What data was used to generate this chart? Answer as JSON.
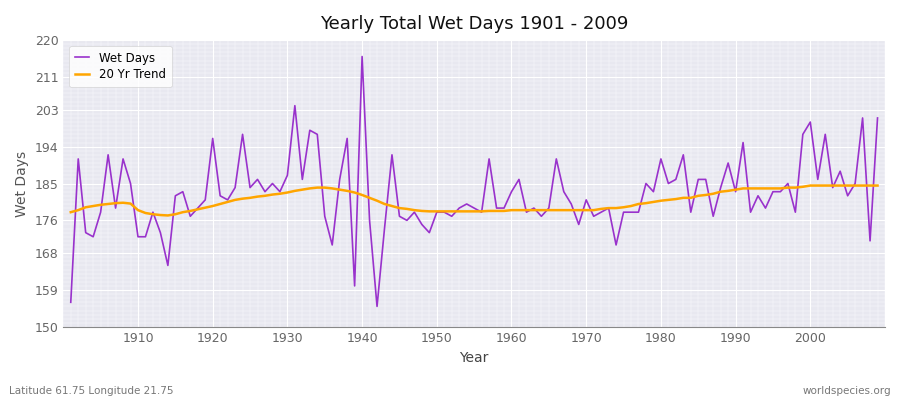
{
  "title": "Yearly Total Wet Days 1901 - 2009",
  "xlabel": "Year",
  "ylabel": "Wet Days",
  "footnote_left": "Latitude 61.75 Longitude 21.75",
  "footnote_right": "worldspecies.org",
  "ylim": [
    150,
    220
  ],
  "yticks": [
    150,
    159,
    168,
    176,
    185,
    194,
    203,
    211,
    220
  ],
  "line_color": "#9932CC",
  "trend_color": "#FFA500",
  "fig_bg": "#FFFFFF",
  "plot_bg": "#E8E8F0",
  "years": [
    1901,
    1902,
    1903,
    1904,
    1905,
    1906,
    1907,
    1908,
    1909,
    1910,
    1911,
    1912,
    1913,
    1914,
    1915,
    1916,
    1917,
    1918,
    1919,
    1920,
    1921,
    1922,
    1923,
    1924,
    1925,
    1926,
    1927,
    1928,
    1929,
    1930,
    1931,
    1932,
    1933,
    1934,
    1935,
    1936,
    1937,
    1938,
    1939,
    1940,
    1941,
    1942,
    1943,
    1944,
    1945,
    1946,
    1947,
    1948,
    1949,
    1950,
    1951,
    1952,
    1953,
    1954,
    1955,
    1956,
    1957,
    1958,
    1959,
    1960,
    1961,
    1962,
    1963,
    1964,
    1965,
    1966,
    1967,
    1968,
    1969,
    1970,
    1971,
    1972,
    1973,
    1974,
    1975,
    1976,
    1977,
    1978,
    1979,
    1980,
    1981,
    1982,
    1983,
    1984,
    1985,
    1986,
    1987,
    1988,
    1989,
    1990,
    1991,
    1992,
    1993,
    1994,
    1995,
    1996,
    1997,
    1998,
    1999,
    2000,
    2001,
    2002,
    2003,
    2004,
    2005,
    2006,
    2007,
    2008,
    2009
  ],
  "wet_days": [
    156,
    191,
    173,
    172,
    178,
    192,
    179,
    191,
    185,
    172,
    172,
    178,
    173,
    165,
    182,
    183,
    177,
    179,
    181,
    196,
    182,
    181,
    184,
    197,
    184,
    186,
    183,
    185,
    183,
    187,
    204,
    186,
    198,
    197,
    177,
    170,
    186,
    196,
    160,
    216,
    176,
    155,
    174,
    192,
    177,
    176,
    178,
    175,
    173,
    178,
    178,
    177,
    179,
    180,
    179,
    178,
    191,
    179,
    179,
    183,
    186,
    178,
    179,
    177,
    179,
    191,
    183,
    180,
    175,
    181,
    177,
    178,
    179,
    170,
    178,
    178,
    178,
    185,
    183,
    191,
    185,
    186,
    192,
    178,
    186,
    186,
    177,
    184,
    190,
    183,
    195,
    178,
    182,
    179,
    183,
    183,
    185,
    178,
    197,
    200,
    186,
    197,
    184,
    188,
    182,
    185,
    201,
    171,
    201
  ],
  "trend": [
    178.0,
    178.5,
    179.2,
    179.5,
    179.8,
    180.0,
    180.2,
    180.3,
    180.1,
    178.5,
    177.8,
    177.5,
    177.3,
    177.2,
    177.5,
    178.0,
    178.3,
    178.7,
    179.1,
    179.5,
    180.0,
    180.5,
    181.0,
    181.3,
    181.5,
    181.8,
    182.0,
    182.3,
    182.5,
    182.8,
    183.2,
    183.5,
    183.8,
    184.0,
    184.0,
    183.8,
    183.5,
    183.2,
    182.8,
    182.2,
    181.5,
    180.8,
    180.0,
    179.5,
    179.0,
    178.8,
    178.5,
    178.3,
    178.2,
    178.2,
    178.2,
    178.2,
    178.2,
    178.2,
    178.2,
    178.2,
    178.3,
    178.3,
    178.3,
    178.5,
    178.5,
    178.5,
    178.5,
    178.5,
    178.5,
    178.5,
    178.5,
    178.5,
    178.5,
    178.5,
    178.5,
    178.8,
    179.0,
    179.0,
    179.2,
    179.5,
    180.0,
    180.2,
    180.5,
    180.8,
    181.0,
    181.2,
    181.5,
    181.5,
    182.0,
    182.2,
    182.5,
    183.0,
    183.2,
    183.5,
    183.8,
    183.8,
    183.8,
    183.8,
    183.8,
    183.8,
    184.0,
    184.0,
    184.2,
    184.5,
    184.5,
    184.5,
    184.5,
    184.5,
    184.5,
    184.5,
    184.5,
    184.5,
    184.5
  ]
}
